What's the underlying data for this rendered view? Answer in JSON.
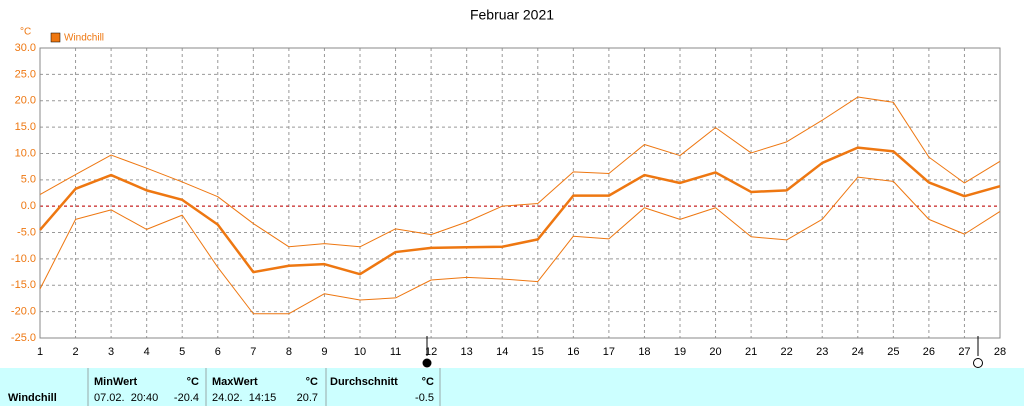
{
  "chart_data": {
    "type": "line",
    "title": "Februar 2021",
    "y_unit": "°C",
    "x": [
      1,
      2,
      3,
      4,
      5,
      6,
      7,
      8,
      9,
      10,
      11,
      12,
      13,
      14,
      15,
      16,
      17,
      18,
      19,
      20,
      21,
      22,
      23,
      24,
      25,
      26,
      27,
      28
    ],
    "xlim": [
      1,
      28
    ],
    "xticks": [
      1,
      2,
      3,
      4,
      5,
      6,
      7,
      8,
      9,
      10,
      11,
      12,
      13,
      14,
      15,
      16,
      17,
      18,
      19,
      20,
      21,
      22,
      23,
      24,
      25,
      26,
      27,
      28
    ],
    "ylim": [
      -25,
      30
    ],
    "yticks": [
      {
        "value": -25,
        "label": "-25.0"
      },
      {
        "value": -20,
        "label": "-20.0"
      },
      {
        "value": -15,
        "label": "-15.0"
      },
      {
        "value": -10,
        "label": "-10.0"
      },
      {
        "value": -5,
        "label": "-5.0"
      },
      {
        "value": 0,
        "label": "0.0"
      },
      {
        "value": 5,
        "label": "5.0"
      },
      {
        "value": 10,
        "label": "10.0"
      },
      {
        "value": 15,
        "label": "15.0"
      },
      {
        "value": 20,
        "label": "20.0"
      },
      {
        "value": 25,
        "label": "25.0"
      },
      {
        "value": 30,
        "label": "30.0"
      }
    ],
    "grid": true,
    "legend": "top-left",
    "hline": {
      "value": 0,
      "color": "#cc0000"
    },
    "series": [
      {
        "name": "Windchill",
        "color": "#ee7711",
        "line_width": 2.5,
        "values": [
          -4.5,
          3.3,
          5.9,
          3.0,
          1.2,
          -3.5,
          -12.5,
          -11.3,
          -11.0,
          -12.9,
          -8.7,
          -7.9,
          -7.8,
          -7.7,
          -6.3,
          2.0,
          2.0,
          5.9,
          4.4,
          6.4,
          2.7,
          3.0,
          8.2,
          11.1,
          10.4,
          4.5,
          1.9,
          3.8
        ]
      },
      {
        "color": "#ee7711",
        "line_width": 1,
        "values": [
          2.2,
          6.0,
          9.7,
          7.2,
          4.6,
          1.8,
          -3.3,
          -7.7,
          -7.1,
          -7.7,
          -4.3,
          -5.4,
          -3.0,
          0.0,
          0.5,
          6.5,
          6.2,
          11.7,
          9.6,
          14.9,
          10.1,
          12.2,
          16.3,
          20.7,
          19.7,
          9.3,
          4.4,
          8.5
        ]
      },
      {
        "color": "#ee7711",
        "line_width": 1,
        "values": [
          -15.7,
          -2.5,
          -0.7,
          -4.4,
          -1.7,
          -11.6,
          -20.4,
          -20.4,
          -16.6,
          -17.8,
          -17.4,
          -14.0,
          -13.5,
          -13.8,
          -14.3,
          -5.7,
          -6.2,
          -0.3,
          -2.5,
          -0.3,
          -5.8,
          -6.4,
          -2.5,
          5.5,
          4.7,
          -2.5,
          -5.3,
          -1.0
        ]
      }
    ]
  },
  "stats": {
    "label": "Windchill",
    "min": {
      "header": "MinWert",
      "unit": "°C",
      "time": "07.02.  20:40",
      "value": -20.4
    },
    "max": {
      "header": "MaxWert",
      "unit": "°C",
      "time": "24.02.  14:15",
      "value": 20.7
    },
    "avg": {
      "header": "Durchschnitt",
      "unit": "°C",
      "value": -0.5
    }
  }
}
